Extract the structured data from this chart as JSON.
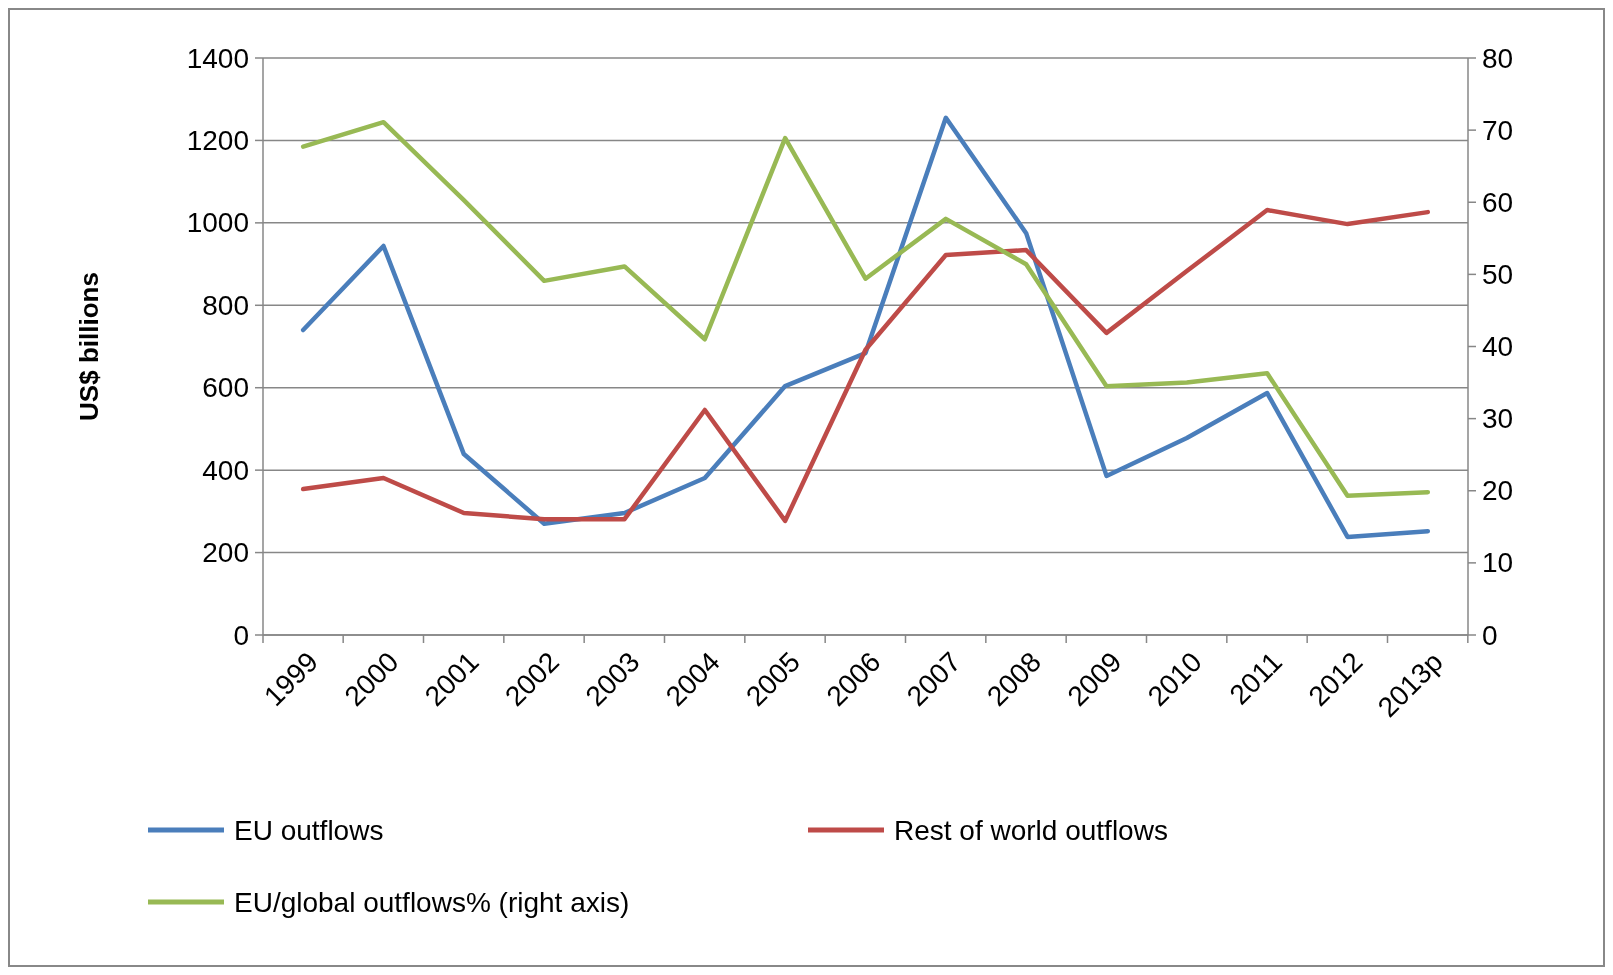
{
  "chart_data": {
    "type": "line",
    "ylabel": "US$ billions",
    "categories": [
      "1999",
      "2000",
      "2001",
      "2002",
      "2003",
      "2004",
      "2005",
      "2006",
      "2007",
      "2008",
      "2009",
      "2010",
      "2011",
      "2012",
      "2013p"
    ],
    "series": [
      {
        "name": "EU outflows",
        "color": "#4a7ebb",
        "values": [
          740,
          944,
          439,
          270,
          296,
          381,
          604,
          684,
          1255,
          975,
          386,
          478,
          587,
          238,
          252
        ]
      },
      {
        "name": "Rest of world outflows",
        "color": "#be4b48",
        "values": [
          354,
          381,
          296,
          281,
          281,
          546,
          277,
          692,
          922,
          934,
          733,
          883,
          1031,
          997,
          1026
        ]
      },
      {
        "name": "EU/global outflows% (right axis)",
        "color": "#98b954",
        "axis": "y2",
        "values": [
          67.7,
          71.1,
          60.3,
          49.1,
          51.1,
          41,
          68.9,
          49.4,
          57.7,
          51.4,
          34.5,
          35,
          36.3,
          19.3,
          19.8
        ]
      }
    ],
    "ylim": [
      0,
      1400
    ],
    "yticks": [
      0,
      200,
      400,
      600,
      800,
      1000,
      1200,
      1400
    ],
    "y2lim": [
      0,
      80
    ],
    "y2ticks": [
      0,
      10,
      20,
      30,
      40,
      50,
      60,
      70,
      80
    ],
    "grid": "y",
    "legend": "bottom",
    "marker": "none",
    "line_style": "solid"
  }
}
